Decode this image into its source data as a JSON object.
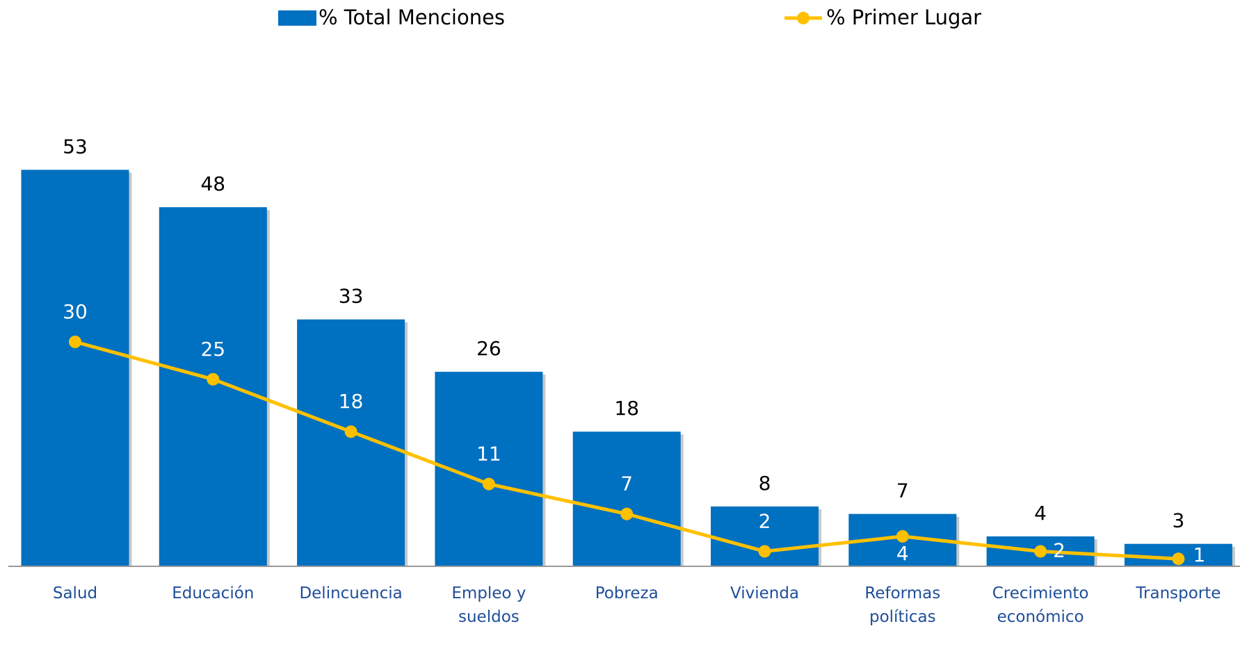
{
  "chart_data": {
    "type": "bar_line",
    "categories": [
      "Salud",
      "Educación",
      "Delincuencia",
      "Empleo y sueldos",
      "Pobreza",
      "Vivienda",
      "Reformas políticas",
      "Crecimiento económico",
      "Transporte"
    ],
    "series": [
      {
        "name": "% Total Menciones",
        "color": "#0070c0",
        "kind": "bar",
        "values": [
          53,
          48,
          33,
          26,
          18,
          8,
          7,
          4,
          3
        ]
      },
      {
        "name": "% Primer Lugar",
        "color": "#ffc000",
        "kind": "line",
        "values": [
          30,
          25,
          18,
          11,
          7,
          2,
          4,
          2,
          1
        ]
      }
    ],
    "ylim": [
      0,
      60
    ]
  }
}
